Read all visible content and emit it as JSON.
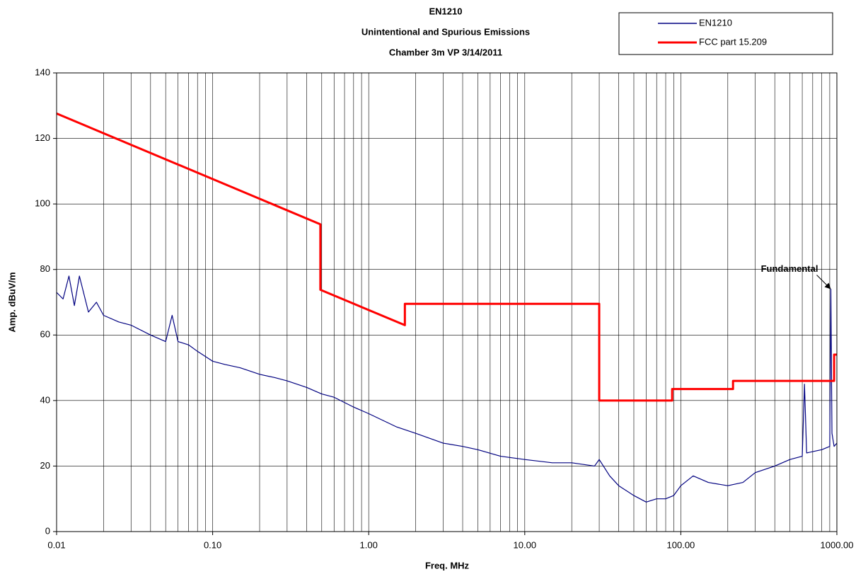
{
  "chart_data": {
    "type": "line",
    "title": [
      "EN1210",
      "Unintentional and Spurious Emissions",
      "Chamber 3m VP 3/14/2011"
    ],
    "x_label": "Freq. MHz",
    "y_label": "Amp. dBuV/m",
    "xscale": "log",
    "xlim": [
      0.01,
      1000
    ],
    "ylim": [
      0,
      140
    ],
    "xticks": [
      {
        "value": 0.01,
        "label": "0.01"
      },
      {
        "value": 0.1,
        "label": "0.10"
      },
      {
        "value": 1,
        "label": "1.00"
      },
      {
        "value": 10,
        "label": "10.00"
      },
      {
        "value": 100,
        "label": "100.00"
      },
      {
        "value": 1000,
        "label": "1000.00"
      }
    ],
    "xminorticks": [
      0.02,
      0.03,
      0.04,
      0.05,
      0.06,
      0.07,
      0.08,
      0.09,
      0.2,
      0.3,
      0.4,
      0.5,
      0.6,
      0.7,
      0.8,
      0.9,
      2,
      3,
      4,
      5,
      6,
      7,
      8,
      9,
      20,
      30,
      40,
      50,
      60,
      70,
      80,
      90,
      200,
      300,
      400,
      500,
      600,
      700,
      800,
      900
    ],
    "yticks": [
      0,
      20,
      40,
      60,
      80,
      100,
      120,
      140
    ],
    "grid": true,
    "legend": "top-right",
    "annotations": [
      {
        "text": "Fundamental",
        "x": 915,
        "y": 74
      }
    ],
    "series": [
      {
        "name": "EN1210",
        "color": "#000080",
        "x": [
          0.01,
          0.011,
          0.012,
          0.013,
          0.014,
          0.016,
          0.018,
          0.02,
          0.025,
          0.03,
          0.04,
          0.05,
          0.055,
          0.06,
          0.07,
          0.08,
          0.1,
          0.12,
          0.15,
          0.2,
          0.25,
          0.3,
          0.4,
          0.5,
          0.6,
          0.8,
          1,
          1.5,
          2,
          3,
          4,
          5,
          7,
          10,
          15,
          20,
          28,
          30,
          35,
          40,
          50,
          60,
          70,
          80,
          90,
          100,
          120,
          150,
          200,
          250,
          300,
          400,
          500,
          600,
          620,
          640,
          800,
          900,
          915,
          930,
          960,
          1000
        ],
        "values": [
          73,
          71,
          78,
          69,
          78,
          67,
          70,
          66,
          64,
          63,
          60,
          58,
          66,
          58,
          57,
          55,
          52,
          51,
          50,
          48,
          47,
          46,
          44,
          42,
          41,
          38,
          36,
          32,
          30,
          27,
          26,
          25,
          23,
          22,
          21,
          21,
          20,
          22,
          17,
          14,
          11,
          9,
          10,
          10,
          11,
          14,
          17,
          15,
          14,
          15,
          18,
          20,
          22,
          23,
          45,
          24,
          25,
          26,
          74,
          30,
          26,
          27
        ]
      },
      {
        "name": "FCC part 15.209",
        "color": "#ff0000",
        "x": [
          0.01,
          0.49,
          0.49,
          1.705,
          1.705,
          30,
          30,
          88,
          88,
          216,
          216,
          960,
          960,
          1000
        ],
        "values": [
          127.6,
          93.8,
          73.8,
          63,
          69.5,
          69.5,
          40,
          40,
          43.5,
          43.5,
          46,
          46,
          54,
          54
        ]
      }
    ]
  }
}
